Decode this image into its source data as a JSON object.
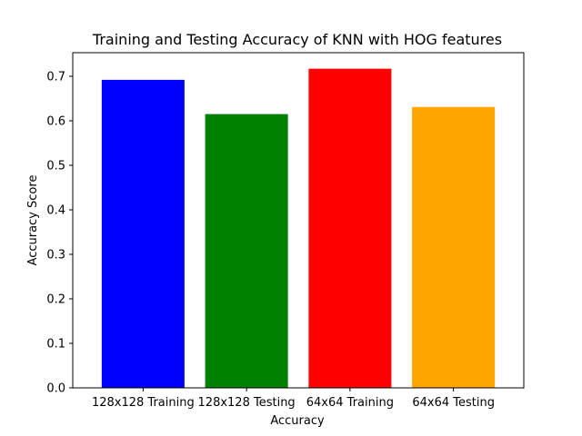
{
  "chart_data": {
    "type": "bar",
    "title": "Training and Testing Accuracy of KNN with HOG features",
    "xlabel": "Accuracy",
    "ylabel": "Accuracy Score",
    "categories": [
      "128x128 Training",
      "128x128 Testing",
      "64x64 Training",
      "64x64 Testing"
    ],
    "values": [
      0.692,
      0.615,
      0.717,
      0.631
    ],
    "colors": [
      "#0000ff",
      "#008000",
      "#ff0000",
      "#ffa500"
    ],
    "ylim": [
      0,
      0.753
    ],
    "yticks": [
      0.0,
      0.1,
      0.2,
      0.3,
      0.4,
      0.5,
      0.6,
      0.7
    ],
    "ytick_labels": [
      "0.0",
      "0.1",
      "0.2",
      "0.3",
      "0.4",
      "0.5",
      "0.6",
      "0.7"
    ],
    "grid": false,
    "legend": "none"
  }
}
